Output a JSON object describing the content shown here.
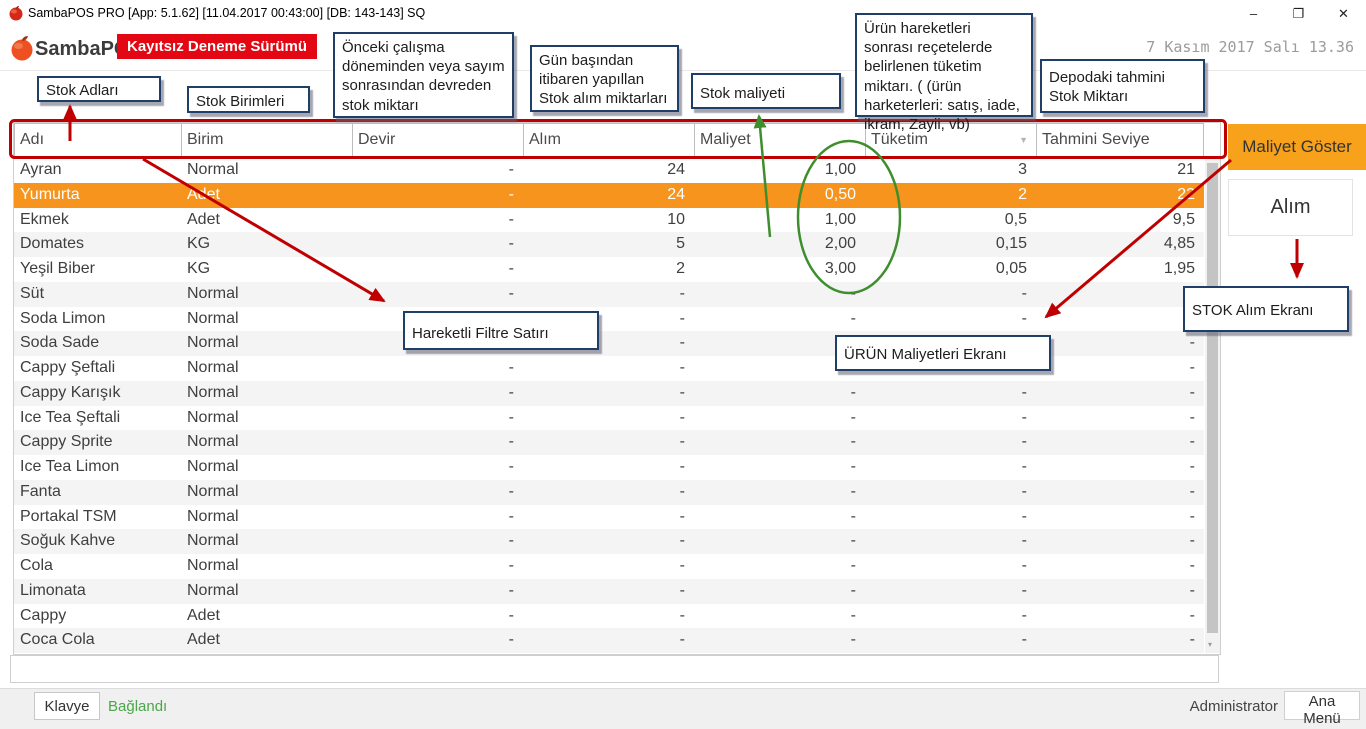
{
  "window": {
    "title": "SambaPOS PRO [App: 5.1.62] [11.04.2017 00:43:00] [DB: 143-143] SQ",
    "minimize": "–",
    "maximize": "❐",
    "close": "✕"
  },
  "header": {
    "brand": "SambaPOS",
    "trial_badge": "Kayıtsız Deneme Sürümü",
    "datetime": "7 Kasım 2017 Salı 13.36"
  },
  "table": {
    "columns": [
      "Adı",
      "Birim",
      "Devir",
      "Alım",
      "Maliyet",
      "Tüketim",
      "Tahmini Seviye"
    ],
    "sort_indicator_column": "Tüketim",
    "selected_row_index": 1,
    "rows": [
      {
        "name": "Ayran",
        "birim": "Normal",
        "devir": "-",
        "alim": "24",
        "maliyet": "1,00",
        "tuketim": "3",
        "tahmini": "21"
      },
      {
        "name": "Yumurta",
        "birim": "Adet",
        "devir": "-",
        "alim": "24",
        "maliyet": "0,50",
        "tuketim": "2",
        "tahmini": "22"
      },
      {
        "name": "Ekmek",
        "birim": "Adet",
        "devir": "-",
        "alim": "10",
        "maliyet": "1,00",
        "tuketim": "0,5",
        "tahmini": "9,5"
      },
      {
        "name": "Domates",
        "birim": "KG",
        "devir": "-",
        "alim": "5",
        "maliyet": "2,00",
        "tuketim": "0,15",
        "tahmini": "4,85"
      },
      {
        "name": "Yeşil Biber",
        "birim": "KG",
        "devir": "-",
        "alim": "2",
        "maliyet": "3,00",
        "tuketim": "0,05",
        "tahmini": "1,95"
      },
      {
        "name": "Süt",
        "birim": "Normal",
        "devir": "-",
        "alim": "-",
        "maliyet": "-",
        "tuketim": "-",
        "tahmini": "-"
      },
      {
        "name": "Soda Limon",
        "birim": "Normal",
        "devir": "-",
        "alim": "-",
        "maliyet": "-",
        "tuketim": "-",
        "tahmini": "-"
      },
      {
        "name": "Soda Sade",
        "birim": "Normal",
        "devir": "-",
        "alim": "-",
        "maliyet": "-",
        "tuketim": "-",
        "tahmini": "-"
      },
      {
        "name": "Cappy Şeftali",
        "birim": "Normal",
        "devir": "-",
        "alim": "-",
        "maliyet": "-",
        "tuketim": "-",
        "tahmini": "-"
      },
      {
        "name": "Cappy Karışık",
        "birim": "Normal",
        "devir": "-",
        "alim": "-",
        "maliyet": "-",
        "tuketim": "-",
        "tahmini": "-"
      },
      {
        "name": "Ice Tea Şeftali",
        "birim": "Normal",
        "devir": "-",
        "alim": "-",
        "maliyet": "-",
        "tuketim": "-",
        "tahmini": "-"
      },
      {
        "name": "Cappy Sprite",
        "birim": "Normal",
        "devir": "-",
        "alim": "-",
        "maliyet": "-",
        "tuketim": "-",
        "tahmini": "-"
      },
      {
        "name": "Ice Tea Limon",
        "birim": "Normal",
        "devir": "-",
        "alim": "-",
        "maliyet": "-",
        "tuketim": "-",
        "tahmini": "-"
      },
      {
        "name": "Fanta",
        "birim": "Normal",
        "devir": "-",
        "alim": "-",
        "maliyet": "-",
        "tuketim": "-",
        "tahmini": "-"
      },
      {
        "name": "Portakal TSM",
        "birim": "Normal",
        "devir": "-",
        "alim": "-",
        "maliyet": "-",
        "tuketim": "-",
        "tahmini": "-"
      },
      {
        "name": "Soğuk Kahve",
        "birim": "Normal",
        "devir": "-",
        "alim": "-",
        "maliyet": "-",
        "tuketim": "-",
        "tahmini": "-"
      },
      {
        "name": "Cola",
        "birim": "Normal",
        "devir": "-",
        "alim": "-",
        "maliyet": "-",
        "tuketim": "-",
        "tahmini": "-"
      },
      {
        "name": "Limonata",
        "birim": "Normal",
        "devir": "-",
        "alim": "-",
        "maliyet": "-",
        "tuketim": "-",
        "tahmini": "-"
      },
      {
        "name": "Cappy",
        "birim": "Adet",
        "devir": "-",
        "alim": "-",
        "maliyet": "-",
        "tuketim": "-",
        "tahmini": "-"
      },
      {
        "name": "Coca Cola",
        "birim": "Adet",
        "devir": "-",
        "alim": "-",
        "maliyet": "-",
        "tuketim": "-",
        "tahmini": "-"
      }
    ]
  },
  "side_buttons": {
    "maliyet_goster": "Maliyet Göster",
    "alim": "Alım"
  },
  "annotations": {
    "stok_adlari": "Stok Adları",
    "stok_birimleri": "Stok Birimleri",
    "onceki_calisma": "Önceki çalışma döneminden veya sayım sonrasından devreden stok miktarı",
    "gun_basindan": "Gün başından itibaren yapıllan Stok alım miktarları",
    "stok_maliyeti": "Stok maliyeti",
    "urun_hareketleri": "Ürün hareketleri sonrası reçetelerde belirlenen tüketim miktarı. ( (ürün harketerleri: satış, iade, ikram, Zayii, vb)",
    "depodaki_tahmini": "Depodaki tahmini Stok Miktarı",
    "hareketli_filtre": "Hareketli Filtre Satırı",
    "urun_maliyetleri_ekrani": "ÜRÜN Maliyetleri Ekranı",
    "stok_alim_ekrani": "STOK Alım Ekranı"
  },
  "status_bar": {
    "klavye": "Klavye",
    "baglandi": "Bağlandı",
    "user": "Administrator",
    "ana_menu": "Ana Menü"
  },
  "colors": {
    "selected_row_orange": "#f7941d",
    "button_orange": "#f7a21a",
    "badge_red": "#e30613",
    "annotation_red": "#c00000",
    "annotation_green": "#3e8e2d",
    "annotation_border_blue": "#1f3f68",
    "connected_green": "#4aa64a"
  }
}
